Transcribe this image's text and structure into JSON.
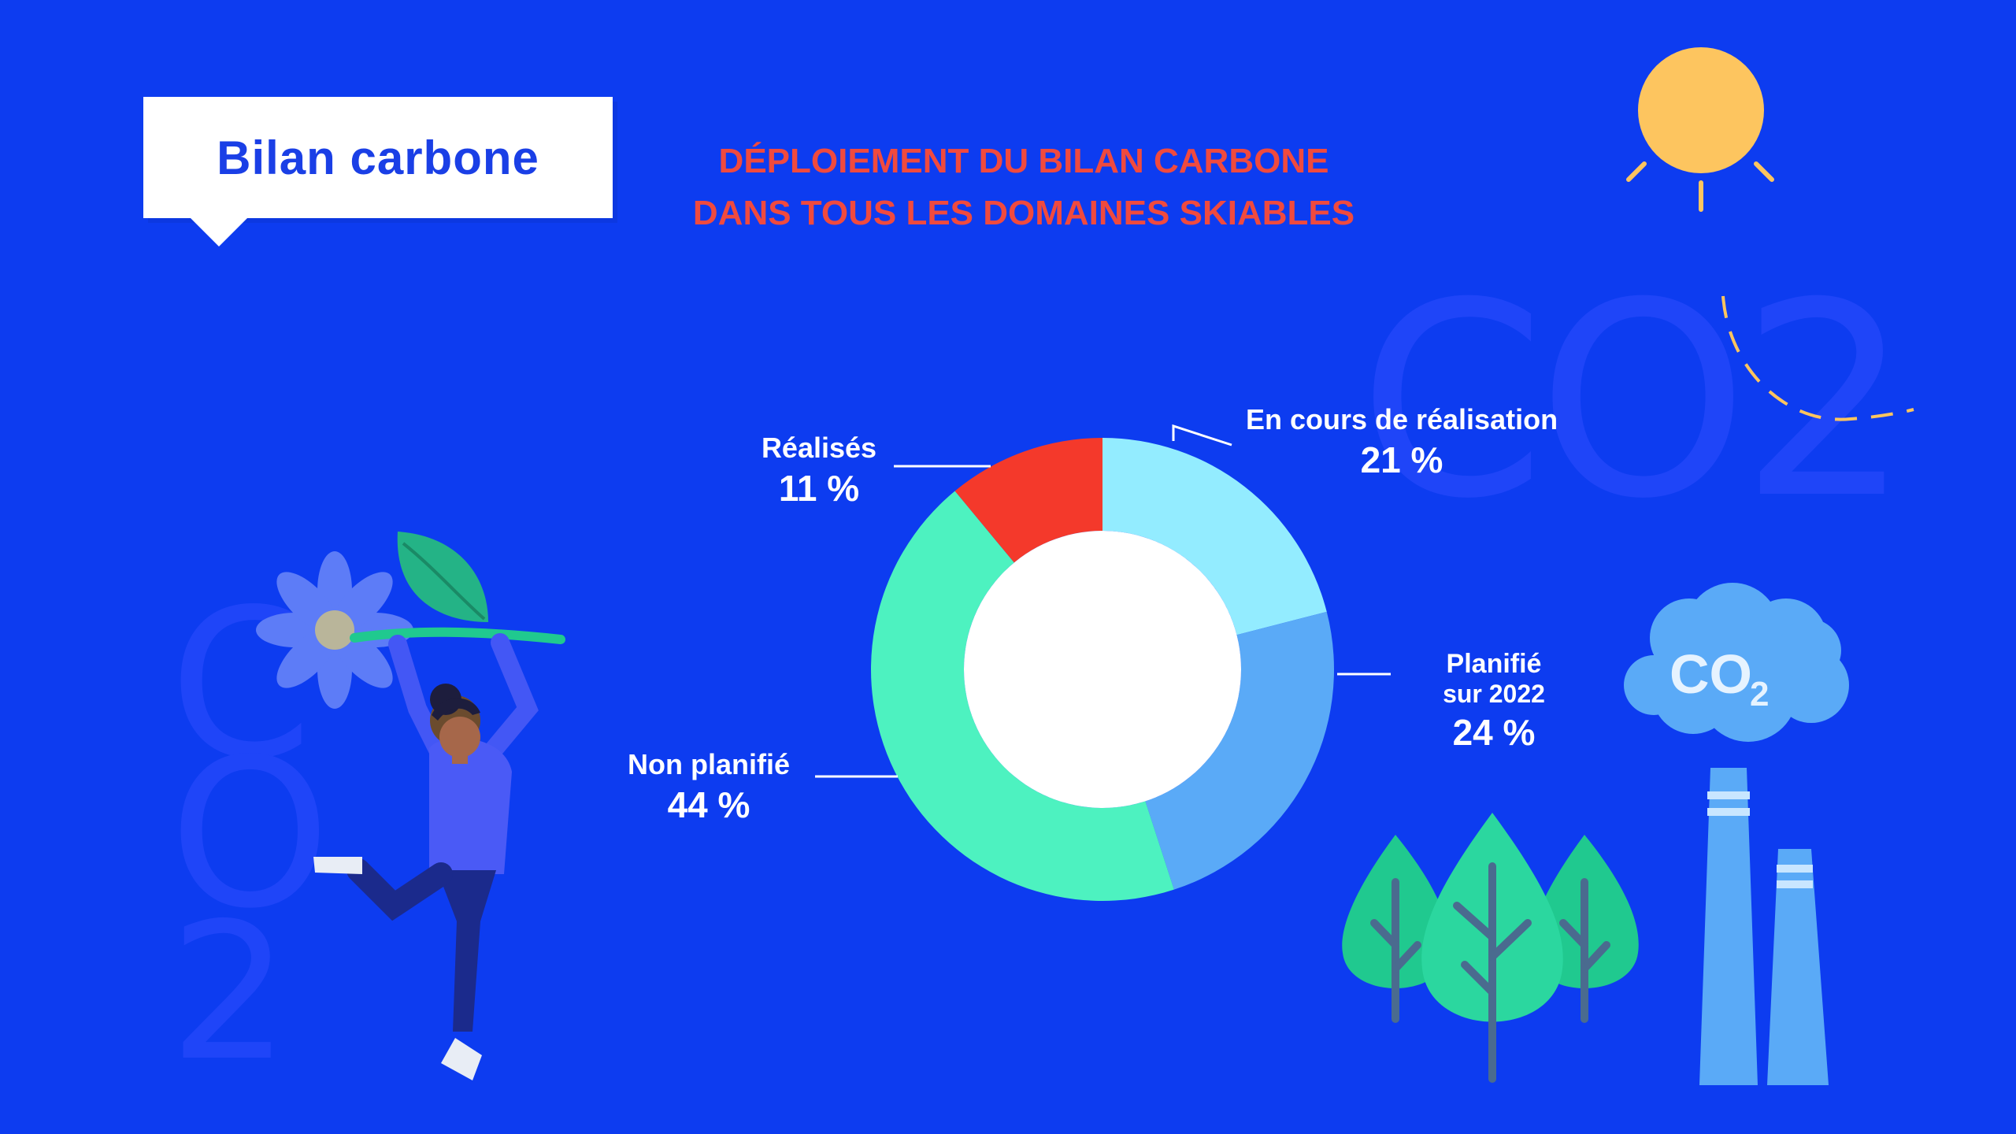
{
  "badge": {
    "title": "Bilan carbone"
  },
  "headline": {
    "line1": "DÉPLOIEMENT DU BILAN CARBONE",
    "line2": "DANS TOUS LES DOMAINES SKIABLES"
  },
  "decor": {
    "big_co2_text": "CO2",
    "left_glyph_top": "C",
    "left_glyph_mid": "O",
    "left_glyph_bottom": "2",
    "cloud_co": "CO",
    "cloud_sub": "2"
  },
  "colors": {
    "background": "#0d3cf0",
    "title_blue": "#1a3fe6",
    "headline_red": "#f04a3e",
    "sun": "#fdc55f"
  },
  "chart_data": {
    "type": "pie",
    "donut": true,
    "title": "",
    "unit": "%",
    "slices": [
      {
        "label": "Réalisés",
        "value": 11,
        "display": "11 %",
        "color": "#f4392b"
      },
      {
        "label": "En cours de réalisation",
        "value": 21,
        "display": "21 %",
        "color": "#93ecff"
      },
      {
        "label": "Planifié sur 2022",
        "label_line1": "Planifié",
        "label_line2": "sur 2022",
        "value": 24,
        "display": "24 %",
        "color": "#5aaaf7"
      },
      {
        "label": "Non planifié",
        "value": 44,
        "display": "44 %",
        "color": "#4df2c0"
      }
    ]
  }
}
